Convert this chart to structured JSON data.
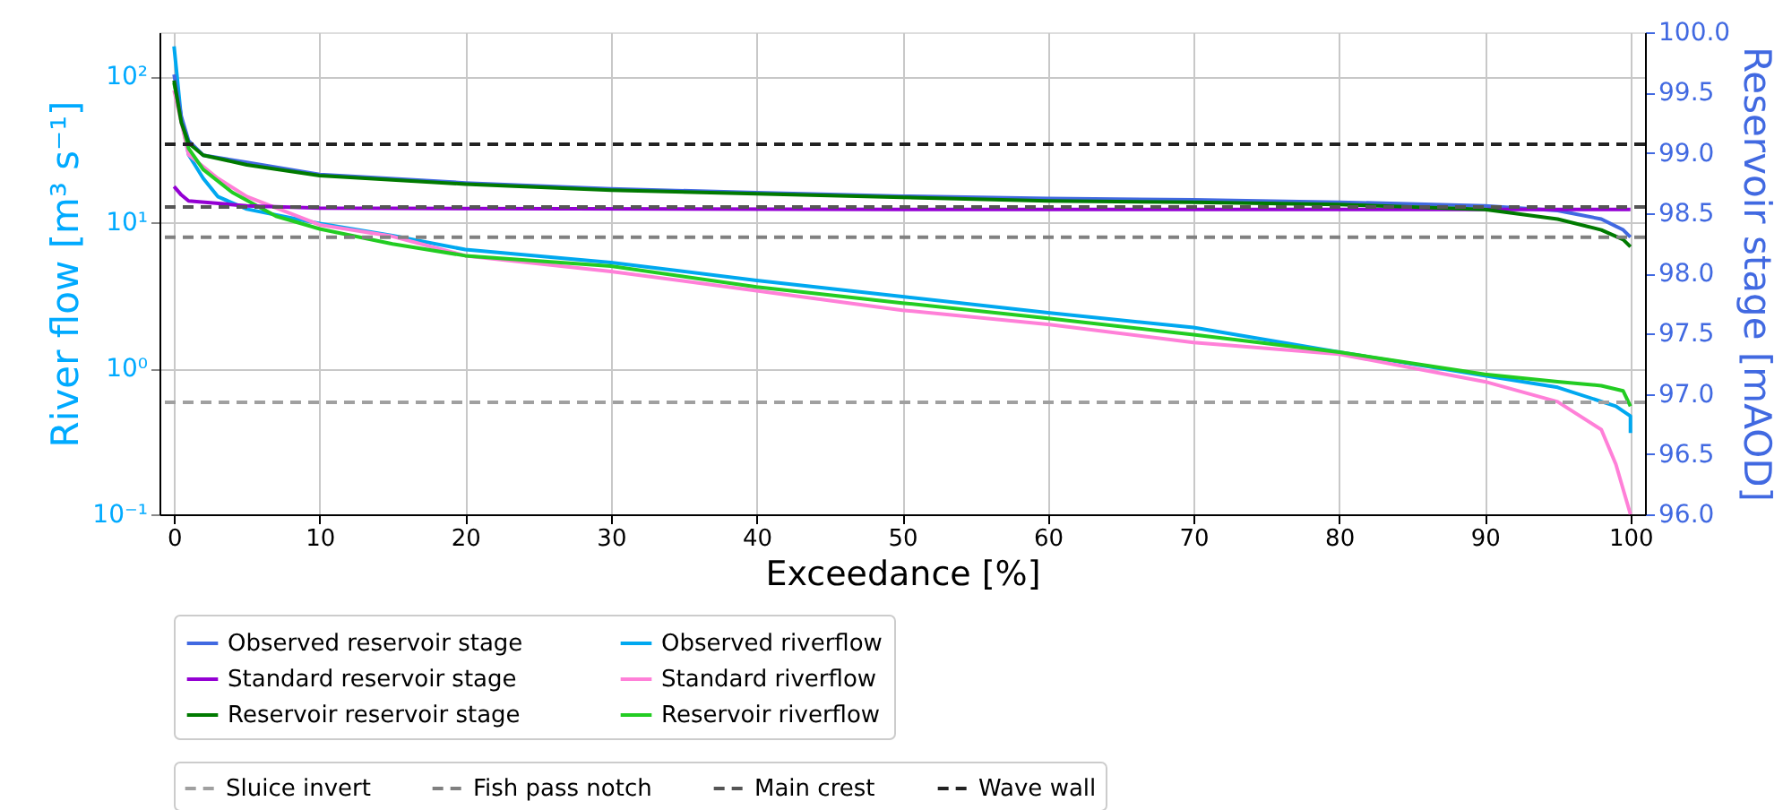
{
  "chart_data": {
    "type": "line",
    "xlabel": "Exceedance [%]",
    "ylabel": "River flow [m³ s⁻¹]",
    "y2label": "Reservoir stage [mAOD]",
    "xlim": [
      -1,
      101
    ],
    "xticks": [
      0,
      10,
      20,
      30,
      40,
      50,
      60,
      70,
      80,
      90,
      100
    ],
    "ylim": [
      0.1,
      200
    ],
    "yticks": [
      {
        "value": 0.1,
        "label": "10⁻¹"
      },
      {
        "value": 1,
        "label": "10⁰"
      },
      {
        "value": 10,
        "label": "10¹"
      },
      {
        "value": 100,
        "label": "10²"
      }
    ],
    "y2lim": [
      96,
      100
    ],
    "y2ticks": [
      {
        "value": 96,
        "label": "96.0"
      },
      {
        "value": 96.5,
        "label": "96.5"
      },
      {
        "value": 97,
        "label": "97.0"
      },
      {
        "value": 97.5,
        "label": "97.5"
      },
      {
        "value": 98,
        "label": "98.0"
      },
      {
        "value": 98.5,
        "label": "98.5"
      },
      {
        "value": 99,
        "label": "99.0"
      },
      {
        "value": 99.5,
        "label": "99.5"
      },
      {
        "value": 100,
        "label": "100.0"
      }
    ],
    "log": "y",
    "grid": true,
    "legend": "bottom",
    "marker": "none",
    "line_style": "solid",
    "series": [
      {
        "name": "Observed reservoir stage",
        "color": "#4169e1",
        "axis": "y2",
        "x": [
          0,
          0.5,
          1,
          2,
          5,
          10,
          20,
          30,
          40,
          50,
          60,
          70,
          80,
          90,
          95,
          98,
          99.5,
          100
        ],
        "values": [
          99.65,
          99.3,
          99.1,
          98.98,
          98.92,
          98.82,
          98.75,
          98.7,
          98.67,
          98.64,
          98.62,
          98.61,
          98.59,
          98.56,
          98.52,
          98.45,
          98.36,
          98.3
        ]
      },
      {
        "name": "Standard reservoir stage",
        "color": "#9400d3",
        "axis": "y2",
        "x": [
          0,
          0.5,
          1,
          5,
          10,
          50,
          100
        ],
        "values": [
          98.72,
          98.65,
          98.6,
          98.56,
          98.54,
          98.53,
          98.53
        ]
      },
      {
        "name": "Reservoir reservoir stage",
        "color": "#007a00",
        "axis": "y2",
        "x": [
          0,
          0.5,
          1,
          2,
          5,
          10,
          20,
          30,
          40,
          50,
          60,
          70,
          80,
          90,
          95,
          98,
          99.5,
          100
        ],
        "values": [
          99.6,
          99.25,
          99.08,
          98.98,
          98.9,
          98.81,
          98.74,
          98.69,
          98.66,
          98.63,
          98.6,
          98.59,
          98.57,
          98.53,
          98.45,
          98.36,
          98.28,
          98.22
        ]
      },
      {
        "name": "Observed riverflow",
        "color": "#00a8f0",
        "x": [
          0,
          0.5,
          1,
          2,
          3,
          5,
          10,
          15,
          20,
          30,
          40,
          50,
          60,
          70,
          80,
          90,
          95,
          99,
          100,
          100
        ],
        "values": [
          160,
          51,
          29,
          20,
          15,
          12.3,
          9.8,
          8.1,
          6.5,
          5.3,
          4.0,
          3.1,
          2.4,
          1.9,
          1.29,
          0.89,
          0.74,
          0.55,
          0.47,
          0.36
        ]
      },
      {
        "name": "Standard riverflow",
        "color": "#ff80d8",
        "x": [
          0,
          1,
          3,
          5,
          10,
          15,
          20,
          30,
          40,
          50,
          60,
          70,
          80,
          90,
          95,
          98,
          99,
          100
        ],
        "values": [
          80,
          29,
          20,
          15,
          9.6,
          8.0,
          5.9,
          4.6,
          3.4,
          2.5,
          2.0,
          1.5,
          1.25,
          0.81,
          0.59,
          0.38,
          0.22,
          0.1
        ]
      },
      {
        "name": "Reservoir riverflow",
        "color": "#22cc22",
        "x": [
          0,
          0.5,
          1,
          2,
          4,
          7,
          10,
          15,
          20,
          30,
          40,
          50,
          60,
          70,
          80,
          90,
          95,
          98,
          99.5,
          100
        ],
        "values": [
          90,
          51,
          32,
          23,
          16,
          11,
          9.0,
          7.1,
          5.9,
          5.0,
          3.6,
          2.8,
          2.2,
          1.7,
          1.29,
          0.91,
          0.81,
          0.76,
          0.7,
          0.55
        ]
      }
    ],
    "ref_lines": [
      {
        "axis": "y2",
        "value": 96.93,
        "label": "Sluice invert",
        "color": "#a0a0a0",
        "line_style": "dashed"
      },
      {
        "axis": "y2",
        "value": 98.3,
        "label": "Fish pass notch",
        "color": "#808080",
        "line_style": "dashed"
      },
      {
        "axis": "y2",
        "value": 98.55,
        "label": "Main crest",
        "color": "#555555",
        "line_style": "dashed"
      },
      {
        "axis": "y2",
        "value": 99.07,
        "label": "Wave wall",
        "color": "#222222",
        "line_style": "dashed"
      }
    ]
  }
}
